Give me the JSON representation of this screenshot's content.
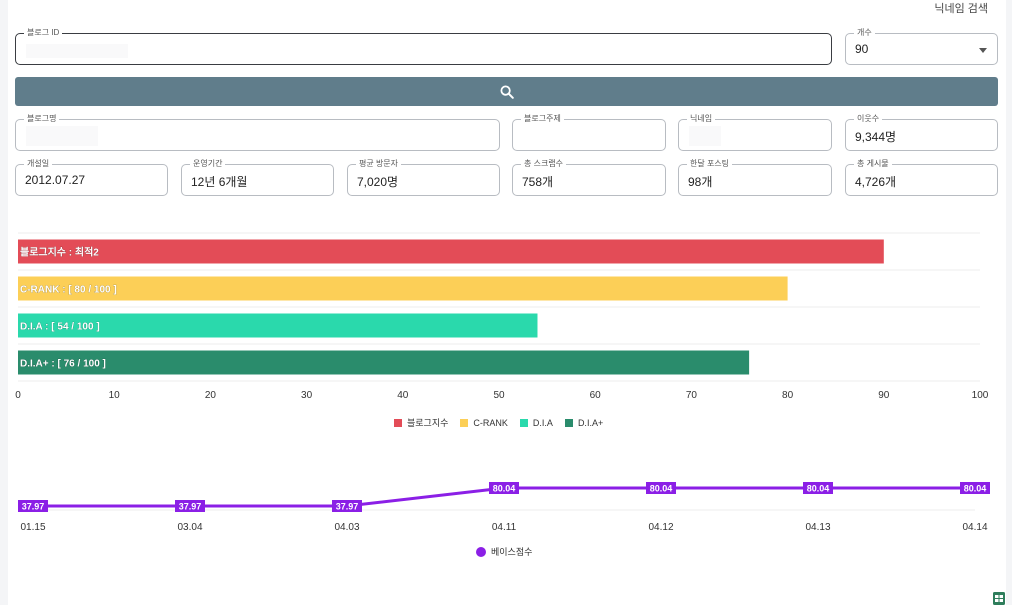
{
  "header": {
    "nickname_search": "닉네임 검색"
  },
  "search": {
    "blog_id_label": "블로그 ID",
    "blog_id_value": "",
    "count_label": "개수",
    "count_value": "90",
    "search_icon": "search-icon"
  },
  "info": {
    "blog_name": {
      "label": "블로그명",
      "value": ""
    },
    "blog_topic": {
      "label": "블로그주제",
      "value": ""
    },
    "nickname": {
      "label": "닉네임",
      "value": ""
    },
    "neighbors": {
      "label": "이웃수",
      "value": "9,344명"
    },
    "opened": {
      "label": "개설일",
      "value": "2012.07.27"
    },
    "period": {
      "label": "운영기간",
      "value": "12년 6개월"
    },
    "avg_visitors": {
      "label": "평균 방문자",
      "value": "7,020명"
    },
    "scraps": {
      "label": "총 스크랩수",
      "value": "758개"
    },
    "monthly_posts": {
      "label": "한달 포스팅",
      "value": "98개"
    },
    "total_posts": {
      "label": "총 게시물",
      "value": "4,726개"
    }
  },
  "chart_data": [
    {
      "type": "bar",
      "orientation": "horizontal",
      "categories": [
        "블로그지수",
        "C-RANK",
        "D.I.A",
        "D.I.A+"
      ],
      "values": [
        90,
        80,
        54,
        76
      ],
      "bar_labels": [
        "블로그지수 : 최적2",
        "C-RANK : [ 80 / 100 ]",
        "D.I.A : [ 54 / 100 ]",
        "D.I.A+ : [ 76 / 100 ]"
      ],
      "colors": [
        "#e34c57",
        "#fccf57",
        "#2ad9ac",
        "#2a8c6c"
      ],
      "xlim": [
        0,
        100
      ],
      "xticks": [
        "0",
        "10",
        "20",
        "30",
        "40",
        "50",
        "60",
        "70",
        "80",
        "90",
        "100"
      ],
      "legend": [
        "블로그지수",
        "C-RANK",
        "D.I.A",
        "D.I.A+"
      ],
      "legend_position": "bottom",
      "grid": true
    },
    {
      "type": "line",
      "x": [
        "01.15",
        "03.04",
        "04.03",
        "04.11",
        "04.12",
        "04.13",
        "04.14"
      ],
      "series": [
        {
          "name": "베이스점수",
          "values": [
            37.97,
            37.97,
            37.97,
            80.04,
            80.04,
            80.04,
            80.04
          ],
          "labels": [
            "37.97",
            "37.97",
            "37.97",
            "80.04",
            "80.04",
            "80.04",
            "80.04"
          ],
          "color": "#8b1fe6"
        }
      ],
      "ylim": [
        0,
        100
      ],
      "legend_position": "bottom"
    }
  ],
  "footer": {
    "excel_icon": "spreadsheet-icon",
    "accent": "#2e7d5b"
  }
}
